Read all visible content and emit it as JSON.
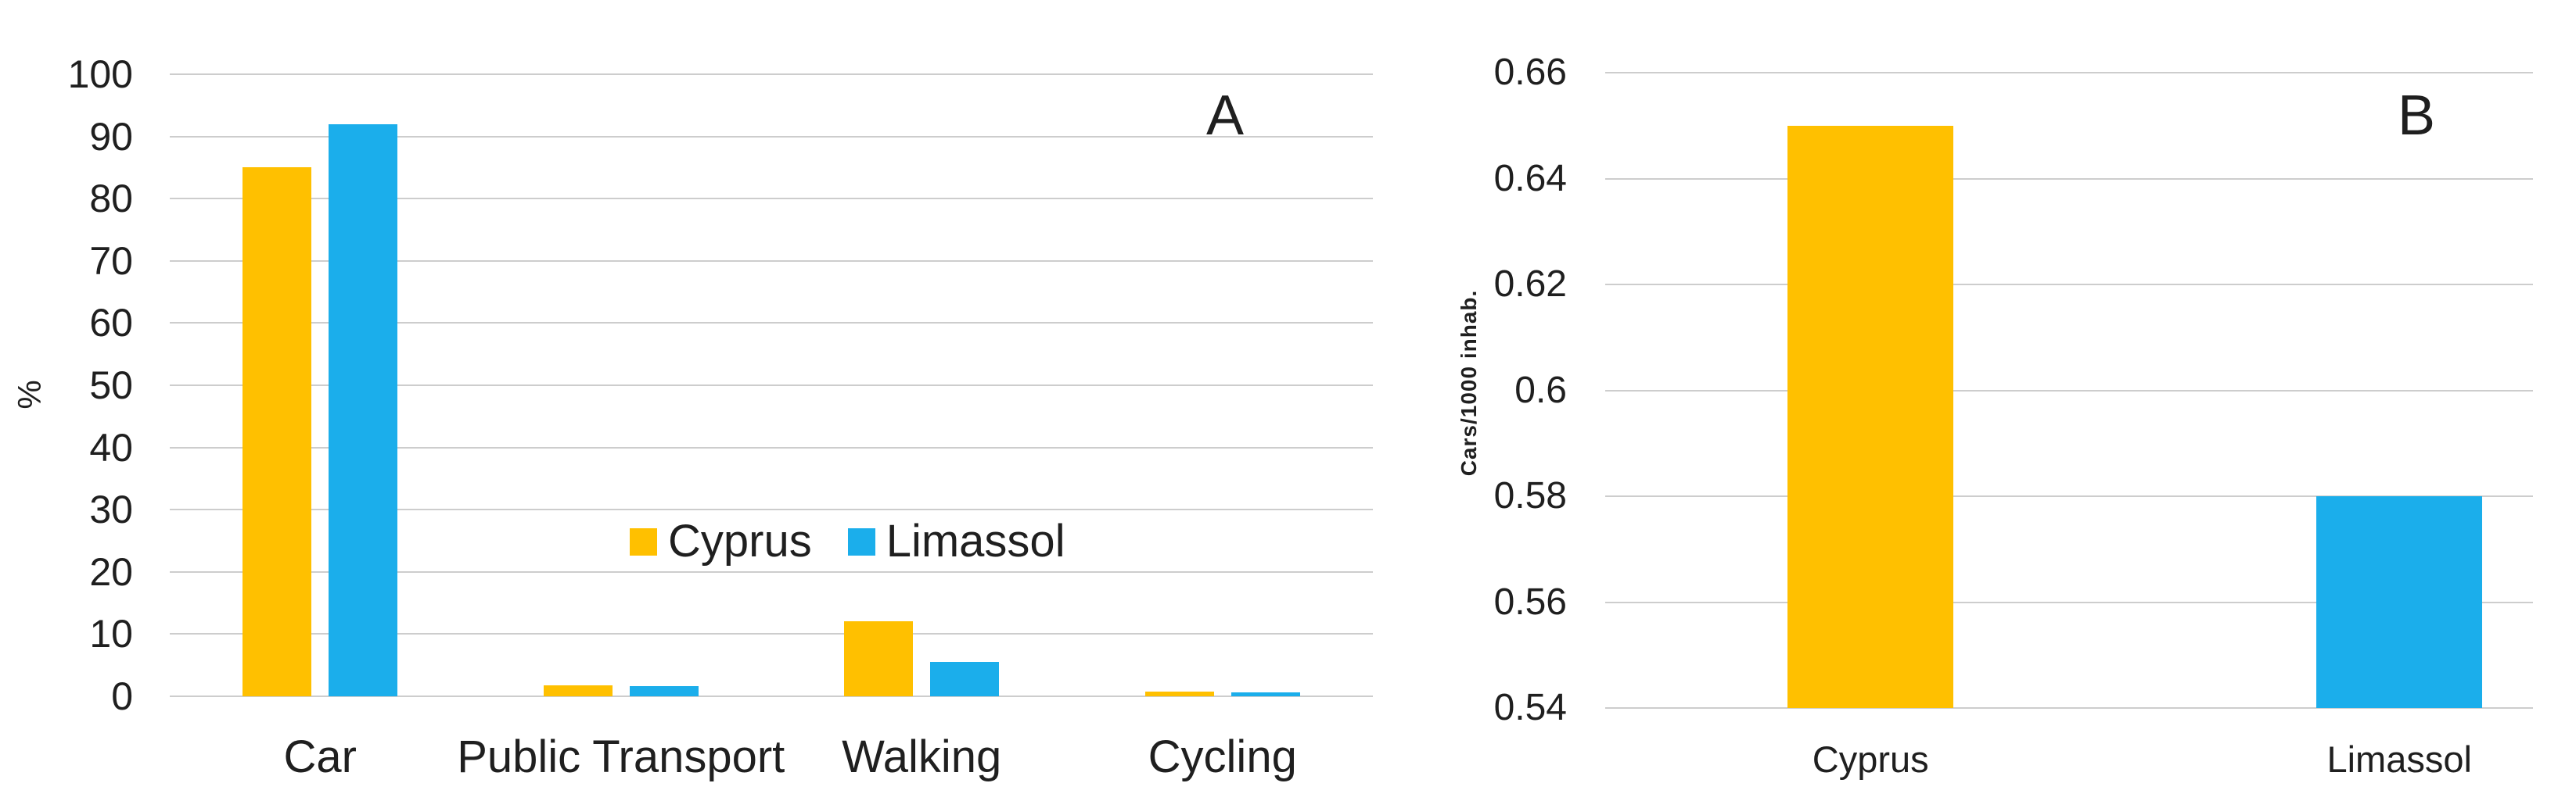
{
  "page": {
    "background": "#ffffff",
    "text_color": "#1f1f1f",
    "gridline_color": "#cdcdcd"
  },
  "colors": {
    "cyprus_orange": "#FFC000",
    "limassol_blue": "#1BAEEB"
  },
  "legend": {
    "items": [
      {
        "label": "Cyprus",
        "color": "#FFC000"
      },
      {
        "label": "Limassol",
        "color": "#1BAEEB"
      }
    ]
  },
  "chart_data": [
    {
      "panel_label": "A",
      "type": "bar",
      "title": "",
      "xlabel": "",
      "ylabel": "%",
      "categories": [
        "Car",
        "Public Transport",
        "Walking",
        "Cycling"
      ],
      "series": [
        {
          "name": "Cyprus",
          "color": "#FFC000",
          "values": [
            85,
            1.8,
            12,
            0.8
          ]
        },
        {
          "name": "Limassol",
          "color": "#1BAEEB",
          "values": [
            92,
            1.6,
            5.5,
            0.6
          ]
        }
      ],
      "ylim": [
        0,
        100
      ],
      "yticks": [
        0,
        10,
        20,
        30,
        40,
        50,
        60,
        70,
        80,
        90,
        100
      ],
      "ytick_labels": [
        "0",
        "10",
        "20",
        "30",
        "40",
        "50",
        "60",
        "70",
        "80",
        "90",
        "100"
      ],
      "grid": true,
      "legend_position": "inside-center, between the 20 and 30 gridlines"
    },
    {
      "panel_label": "B",
      "type": "bar",
      "title": "",
      "xlabel": "",
      "ylabel": "Cars/1000 inhab.",
      "categories": [
        "Cyprus",
        "Limassol"
      ],
      "values": [
        0.65,
        0.58
      ],
      "bar_colors": [
        "#FFC000",
        "#1BAEEB"
      ],
      "ylim": [
        0.54,
        0.66
      ],
      "yticks": [
        0.66,
        0.64,
        0.62,
        0.6,
        0.58,
        0.56,
        0.54
      ],
      "ytick_labels": [
        "0.66",
        "0.64",
        "0.62",
        "0.6",
        "0.58",
        "0.56",
        "0.54"
      ],
      "grid": true,
      "legend_position": "none"
    }
  ]
}
